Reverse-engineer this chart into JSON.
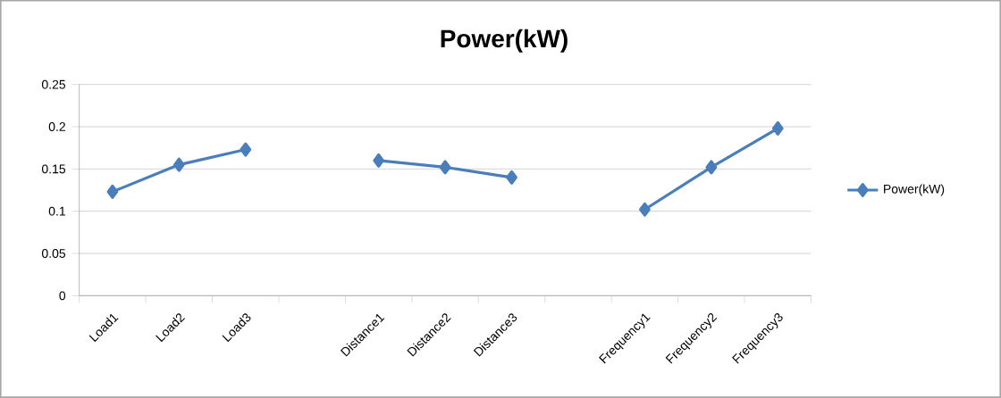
{
  "chart_data": {
    "type": "line",
    "title": "Power(kW)",
    "categories": [
      "Load1",
      "Load2",
      "Load3",
      null,
      "Distance1",
      "Distance2",
      "Distance3",
      null,
      "Frequency1",
      "Frequency2",
      "Frequency3"
    ],
    "series": [
      {
        "name": "Power(kW)",
        "color": "#4a7ebb",
        "values": [
          0.123,
          0.155,
          0.173,
          null,
          0.16,
          0.152,
          0.14,
          null,
          0.102,
          0.152,
          0.198
        ]
      }
    ],
    "ylim": [
      0,
      0.25
    ],
    "yticks": [
      0,
      0.05,
      0.1,
      0.15,
      0.2,
      0.25
    ],
    "grid": "y",
    "legend": "right",
    "marker": "diamond"
  }
}
